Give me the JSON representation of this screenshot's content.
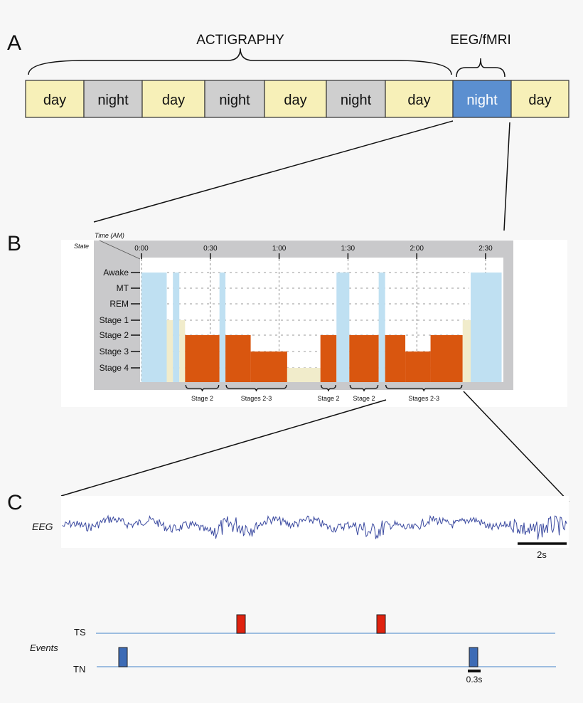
{
  "panels": {
    "a": "A",
    "b": "B",
    "c": "C"
  },
  "timeline": {
    "actigraphy_label": "ACTIGRAPHY",
    "eeg_fmri_label": "EEG/fMRI",
    "cells": [
      {
        "label": "day",
        "kind": "day"
      },
      {
        "label": "night",
        "kind": "night"
      },
      {
        "label": "day",
        "kind": "day"
      },
      {
        "label": "night",
        "kind": "night"
      },
      {
        "label": "day",
        "kind": "day"
      },
      {
        "label": "night",
        "kind": "night"
      },
      {
        "label": "day",
        "kind": "day"
      },
      {
        "label": "night",
        "kind": "scan-night"
      },
      {
        "label": "day",
        "kind": "day"
      }
    ],
    "colors": {
      "day": "#f7f0b8",
      "night": "#cfcfcf",
      "scan-night": "#5b8fd0"
    }
  },
  "hypnogram": {
    "time_axis_label": "Time (AM)",
    "state_axis_label": "State",
    "time_ticks": [
      "0:00",
      "0:30",
      "1:00",
      "1:30",
      "2:00",
      "2:30"
    ],
    "states": [
      "Awake",
      "MT",
      "REM",
      "Stage 1",
      "Stage 2",
      "Stage 3",
      "Stage 4"
    ],
    "colors": {
      "awake": "#bfe0f2",
      "light": "#f1eccb",
      "deep": "#d9560f"
    },
    "segments": [
      {
        "start": 0,
        "end": 11,
        "state": "Awake"
      },
      {
        "start": 11,
        "end": 13.7,
        "state": "Stage 1"
      },
      {
        "start": 13.7,
        "end": 16.5,
        "state": "Awake"
      },
      {
        "start": 16.5,
        "end": 19,
        "state": "Stage 1"
      },
      {
        "start": 19,
        "end": 34,
        "state": "Stage 2"
      },
      {
        "start": 34,
        "end": 36.6,
        "state": "Awake"
      },
      {
        "start": 36.6,
        "end": 47.6,
        "state": "Stage 2"
      },
      {
        "start": 47.6,
        "end": 63.5,
        "state": "Stage 3"
      },
      {
        "start": 63.5,
        "end": 78,
        "state": "Stage 4"
      },
      {
        "start": 78,
        "end": 85,
        "state": "Stage 2"
      },
      {
        "start": 85,
        "end": 90.6,
        "state": "Awake"
      },
      {
        "start": 90.6,
        "end": 103.4,
        "state": "Stage 2"
      },
      {
        "start": 103.4,
        "end": 106.2,
        "state": "Awake"
      },
      {
        "start": 106.2,
        "end": 115,
        "state": "Stage 2"
      },
      {
        "start": 115,
        "end": 126,
        "state": "Stage 3"
      },
      {
        "start": 126,
        "end": 140,
        "state": "Stage 2"
      },
      {
        "start": 140,
        "end": 143.5,
        "state": "Stage 1"
      },
      {
        "start": 143.5,
        "end": 157,
        "state": "Awake"
      }
    ],
    "braces": [
      {
        "start": 19,
        "end": 34,
        "label": "Stage 2"
      },
      {
        "start": 36.6,
        "end": 63.5,
        "label": "Stages 2-3"
      },
      {
        "start": 78,
        "end": 85,
        "label": "Stage 2"
      },
      {
        "start": 90.6,
        "end": 103.4,
        "label": "Stage 2"
      },
      {
        "start": 106.2,
        "end": 140,
        "label": "Stages 2-3"
      }
    ]
  },
  "eeg": {
    "label": "EEG",
    "scale_label": "2s",
    "color": "#3b4aa0"
  },
  "events": {
    "label": "Events",
    "ts_label": "TS",
    "tn_label": "TN",
    "scale_label": "0.3s",
    "colors": {
      "ts": "#e0220f",
      "tn": "#3d6bb5",
      "line": "#9dbde0"
    }
  }
}
